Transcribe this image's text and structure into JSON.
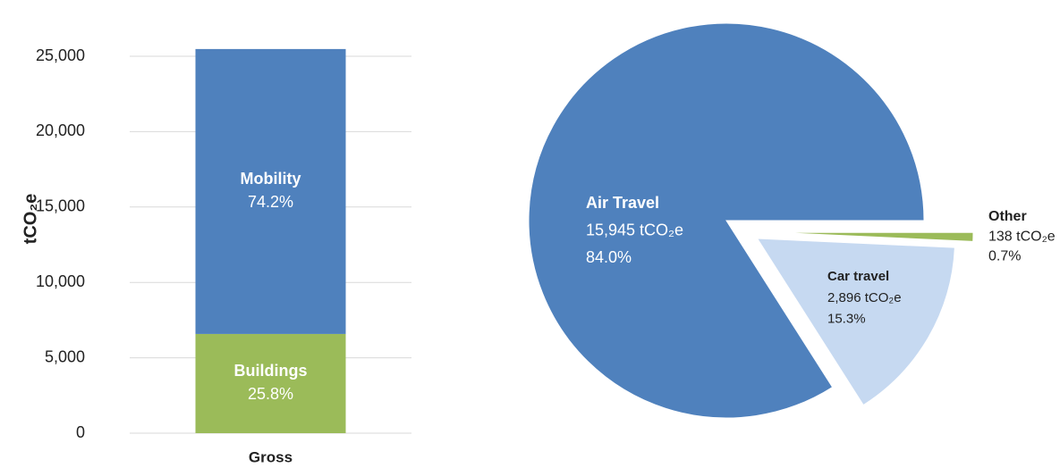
{
  "chart_data": [
    {
      "type": "stacked-bar",
      "categories": [
        "Gross"
      ],
      "y_label": "tCO₂e",
      "ylim": [
        0,
        25000
      ],
      "yticks": [
        0,
        {
          "value": 5000,
          "label": "5,000"
        },
        {
          "value": 10000,
          "label": "10,000"
        },
        {
          "value": 15000,
          "label": "15,000"
        },
        {
          "value": 20000,
          "label": "20,000"
        },
        {
          "value": 25000,
          "label": "25,000"
        }
      ],
      "grid": true,
      "series": [
        {
          "name": "Buildings",
          "color": "#9bbb59",
          "values": [
            6580
          ],
          "percent_labels": [
            "25.8%"
          ]
        },
        {
          "name": "Mobility",
          "color": "#4f81bd",
          "values": [
            18900
          ],
          "percent_labels": [
            "74.2%"
          ]
        }
      ]
    },
    {
      "type": "pie",
      "categories": [
        "Other",
        "Car travel",
        "Air Travel"
      ],
      "values": [
        138,
        2896,
        15945
      ],
      "value_labels": [
        "138 tCO₂e",
        "2,896 tCO₂e",
        "15,945 tCO₂e"
      ],
      "percent_labels": [
        "0.7%",
        "15.3%",
        "84.0%"
      ],
      "colors": [
        "#9bbb59",
        "#c6d9f1",
        "#4f81bd"
      ]
    }
  ]
}
